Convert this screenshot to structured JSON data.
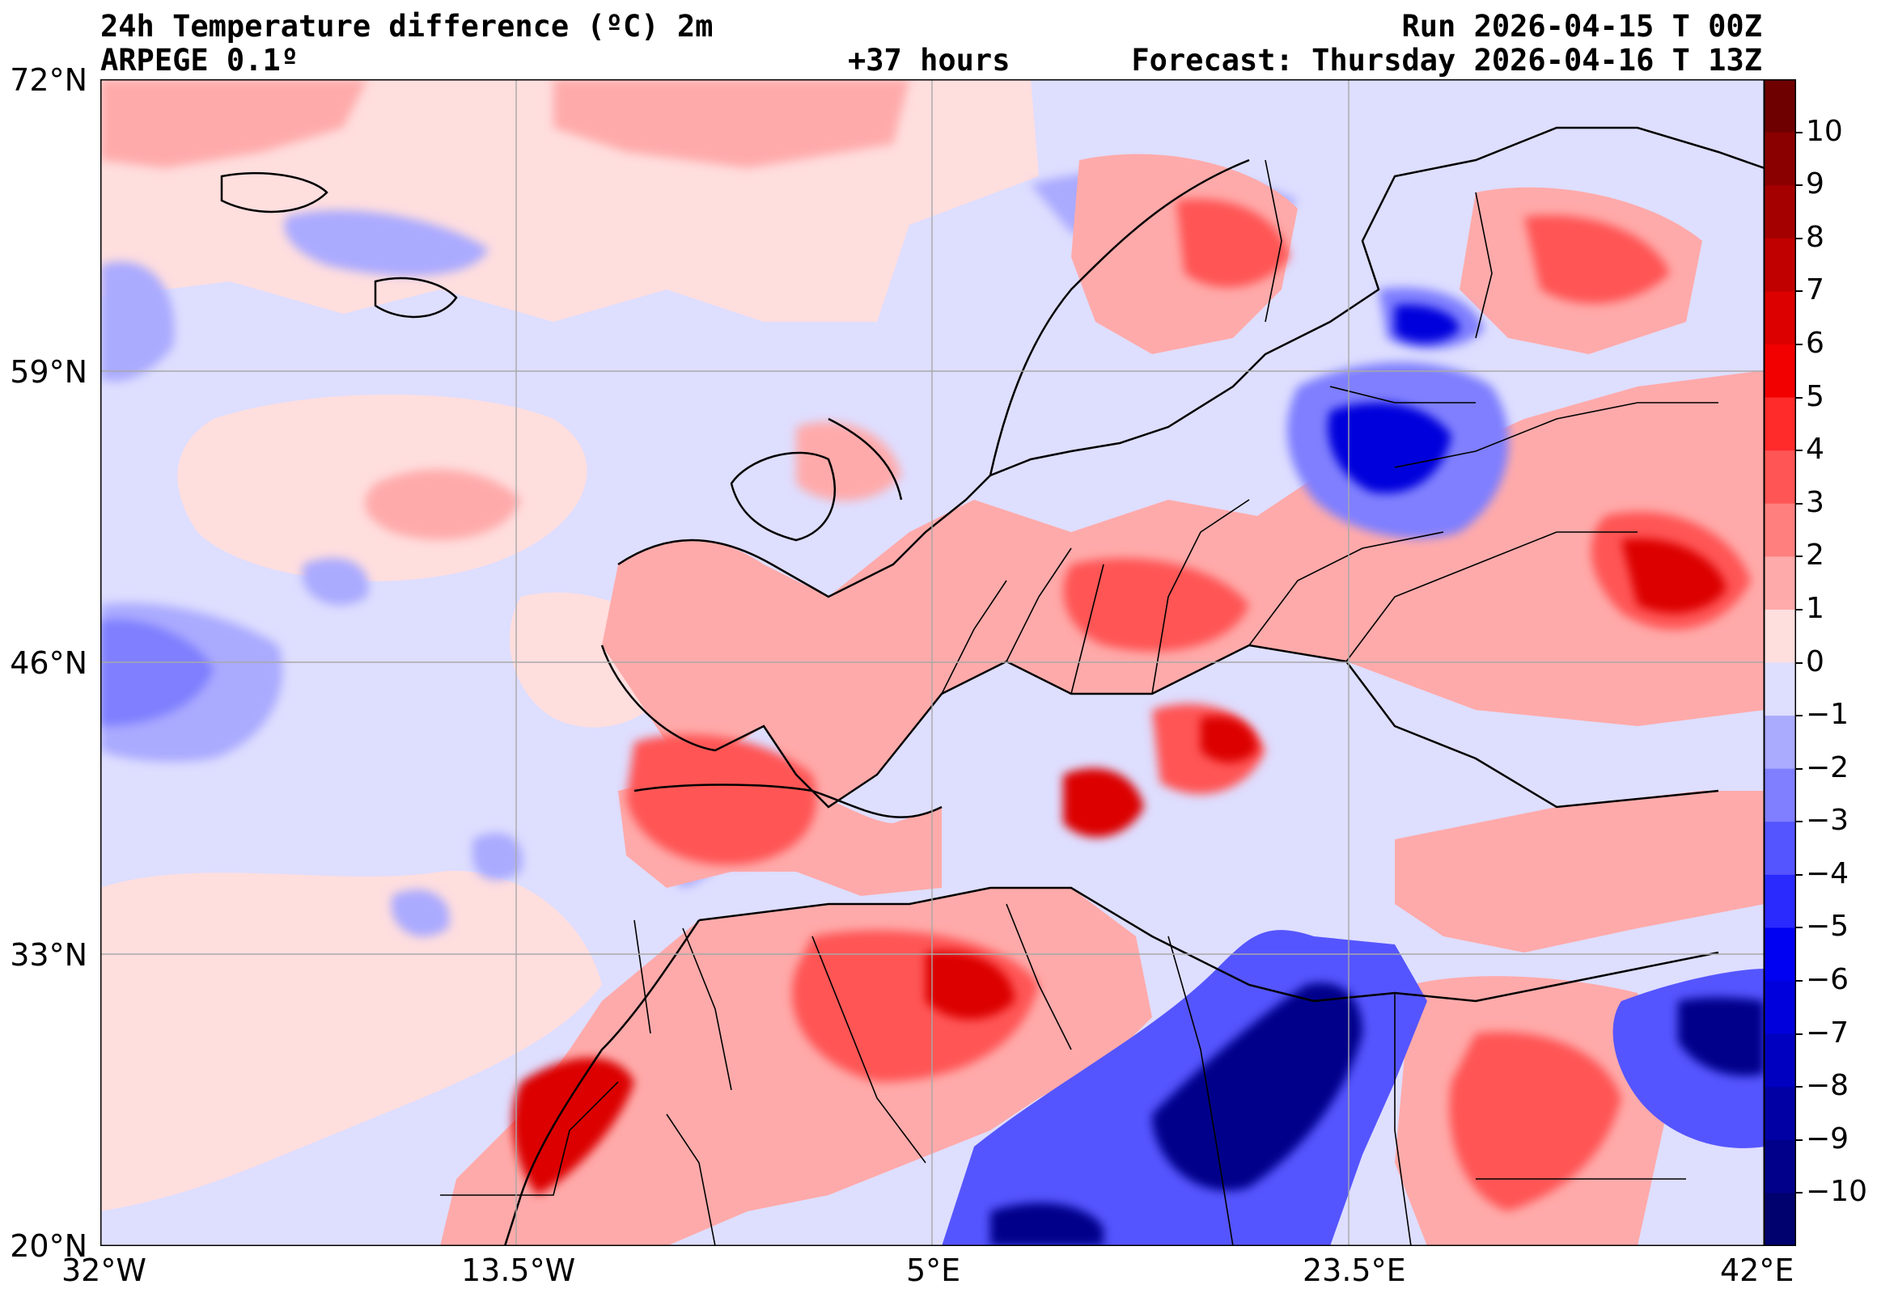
{
  "header": {
    "title": "24h Temperature difference (ºC) 2m",
    "model": "ARPEGE 0.1º",
    "lead": "+37 hours",
    "run": "Run 2026-04-15 T 00Z",
    "forecast": "Forecast: Thursday 2026-04-16 T 13Z"
  },
  "map": {
    "lon_labels": [
      "32°W",
      "13.5°W",
      "5°E",
      "23.5°E",
      "42°E"
    ],
    "lat_labels": [
      "72°N",
      "59°N",
      "46°N",
      "33°N",
      "20°N"
    ],
    "lon_range": [
      -32,
      42
    ],
    "lat_range": [
      20,
      72
    ],
    "gridlines": true,
    "background_value_sea": "0 to 1 / 0 to -1"
  },
  "colorbar": {
    "tick_labels": [
      "10",
      "9",
      "8",
      "7",
      "6",
      "5",
      "4",
      "3",
      "2",
      "1",
      "0",
      "−1",
      "−2",
      "−3",
      "−4",
      "−5",
      "−6",
      "−7",
      "−8",
      "−9",
      "−10"
    ],
    "colors_top_to_bottom": [
      "#6e0000",
      "#8a0000",
      "#a50000",
      "#c00000",
      "#dc0000",
      "#f20000",
      "#ff2a2a",
      "#ff5555",
      "#ff7f7f",
      "#ffaaaa",
      "#ffdede",
      "#dedeff",
      "#aaaaff",
      "#7f7fff",
      "#5555ff",
      "#2a2aff",
      "#0000f2",
      "#0000dc",
      "#0000c0",
      "#0000a5",
      "#00008a",
      "#00006e"
    ]
  }
}
